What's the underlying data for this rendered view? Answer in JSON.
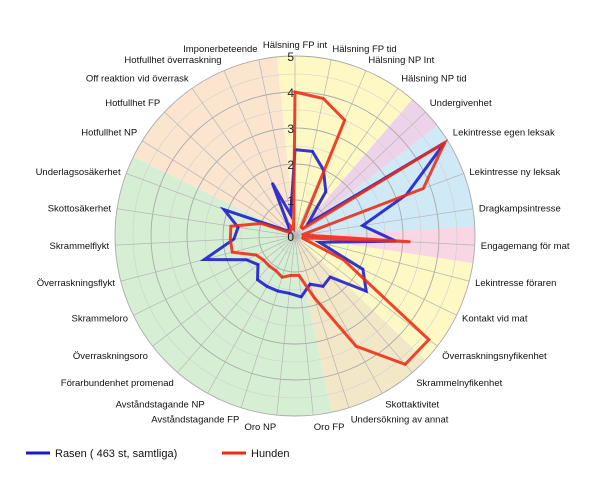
{
  "chart_data": {
    "type": "radar",
    "categories": [
      "Hälsning FP int",
      "Hälsning FP tid",
      "Hälsning NP Int",
      "Hälsning NP tid",
      "Undergivenhet",
      "Lekintresse egen leksak",
      "Lekintresse ny leksak",
      "Dragkampsintresse",
      "Engagemang för mat",
      "Lekintresse föraren",
      "Kontakt vid mat",
      "Överraskningsnyfikenhet",
      "Skrammelnyfikenhet",
      "Skottaktivitet",
      "Undersökning av annat",
      "Oro FP",
      "Oro NP",
      "Avståndstagande FP",
      "Avståndstagande NP",
      "Förarbundenhet promenad",
      "Överraskningsoro",
      "Skrammeloro",
      "Överraskningsflykt",
      "Skrammelflykt",
      "Skottosäkerhet",
      "Underlagsosäkerhet",
      "Hotfullhet NP",
      "Hotfullhet FP",
      "Off reaktion vid överrask",
      "Hotfullhet överraskning",
      "Imponerbeteende"
    ],
    "range": [
      0,
      5
    ],
    "ticks": [
      "0",
      "1",
      "2",
      "3",
      "4",
      "5"
    ],
    "series": [
      {
        "name": "Rasen ( 463 st, samtliga)",
        "color": "#1a1acc",
        "values": [
          2.4,
          2.4,
          2.0,
          1.5,
          0.5,
          4.9,
          3.3,
          1.9,
          2.8,
          0.7,
          2.1,
          2.5,
          1.5,
          1.6,
          1.4,
          1.7,
          1.6,
          1.6,
          1.6,
          1.6,
          1.3,
          1.5,
          2.6,
          1.7,
          1.6,
          2.1,
          0.3,
          0.2,
          0.3,
          1.6,
          0.6
        ]
      },
      {
        "name": "Hunden",
        "color": "#ee2a14",
        "values": [
          4.0,
          3.9,
          3.5,
          0.3,
          0.3,
          4.9,
          3.8,
          0.2,
          3.2,
          0.2,
          1.5,
          4.7,
          4.7,
          3.5,
          1.8,
          1.1,
          1.1,
          1.2,
          1.1,
          1.1,
          1.1,
          1.2,
          1.8,
          1.8,
          1.8,
          1.0,
          0.2,
          0.2,
          0.2,
          0.3,
          0.2
        ]
      }
    ],
    "legend_position": "bottom-left",
    "grid": true
  }
}
